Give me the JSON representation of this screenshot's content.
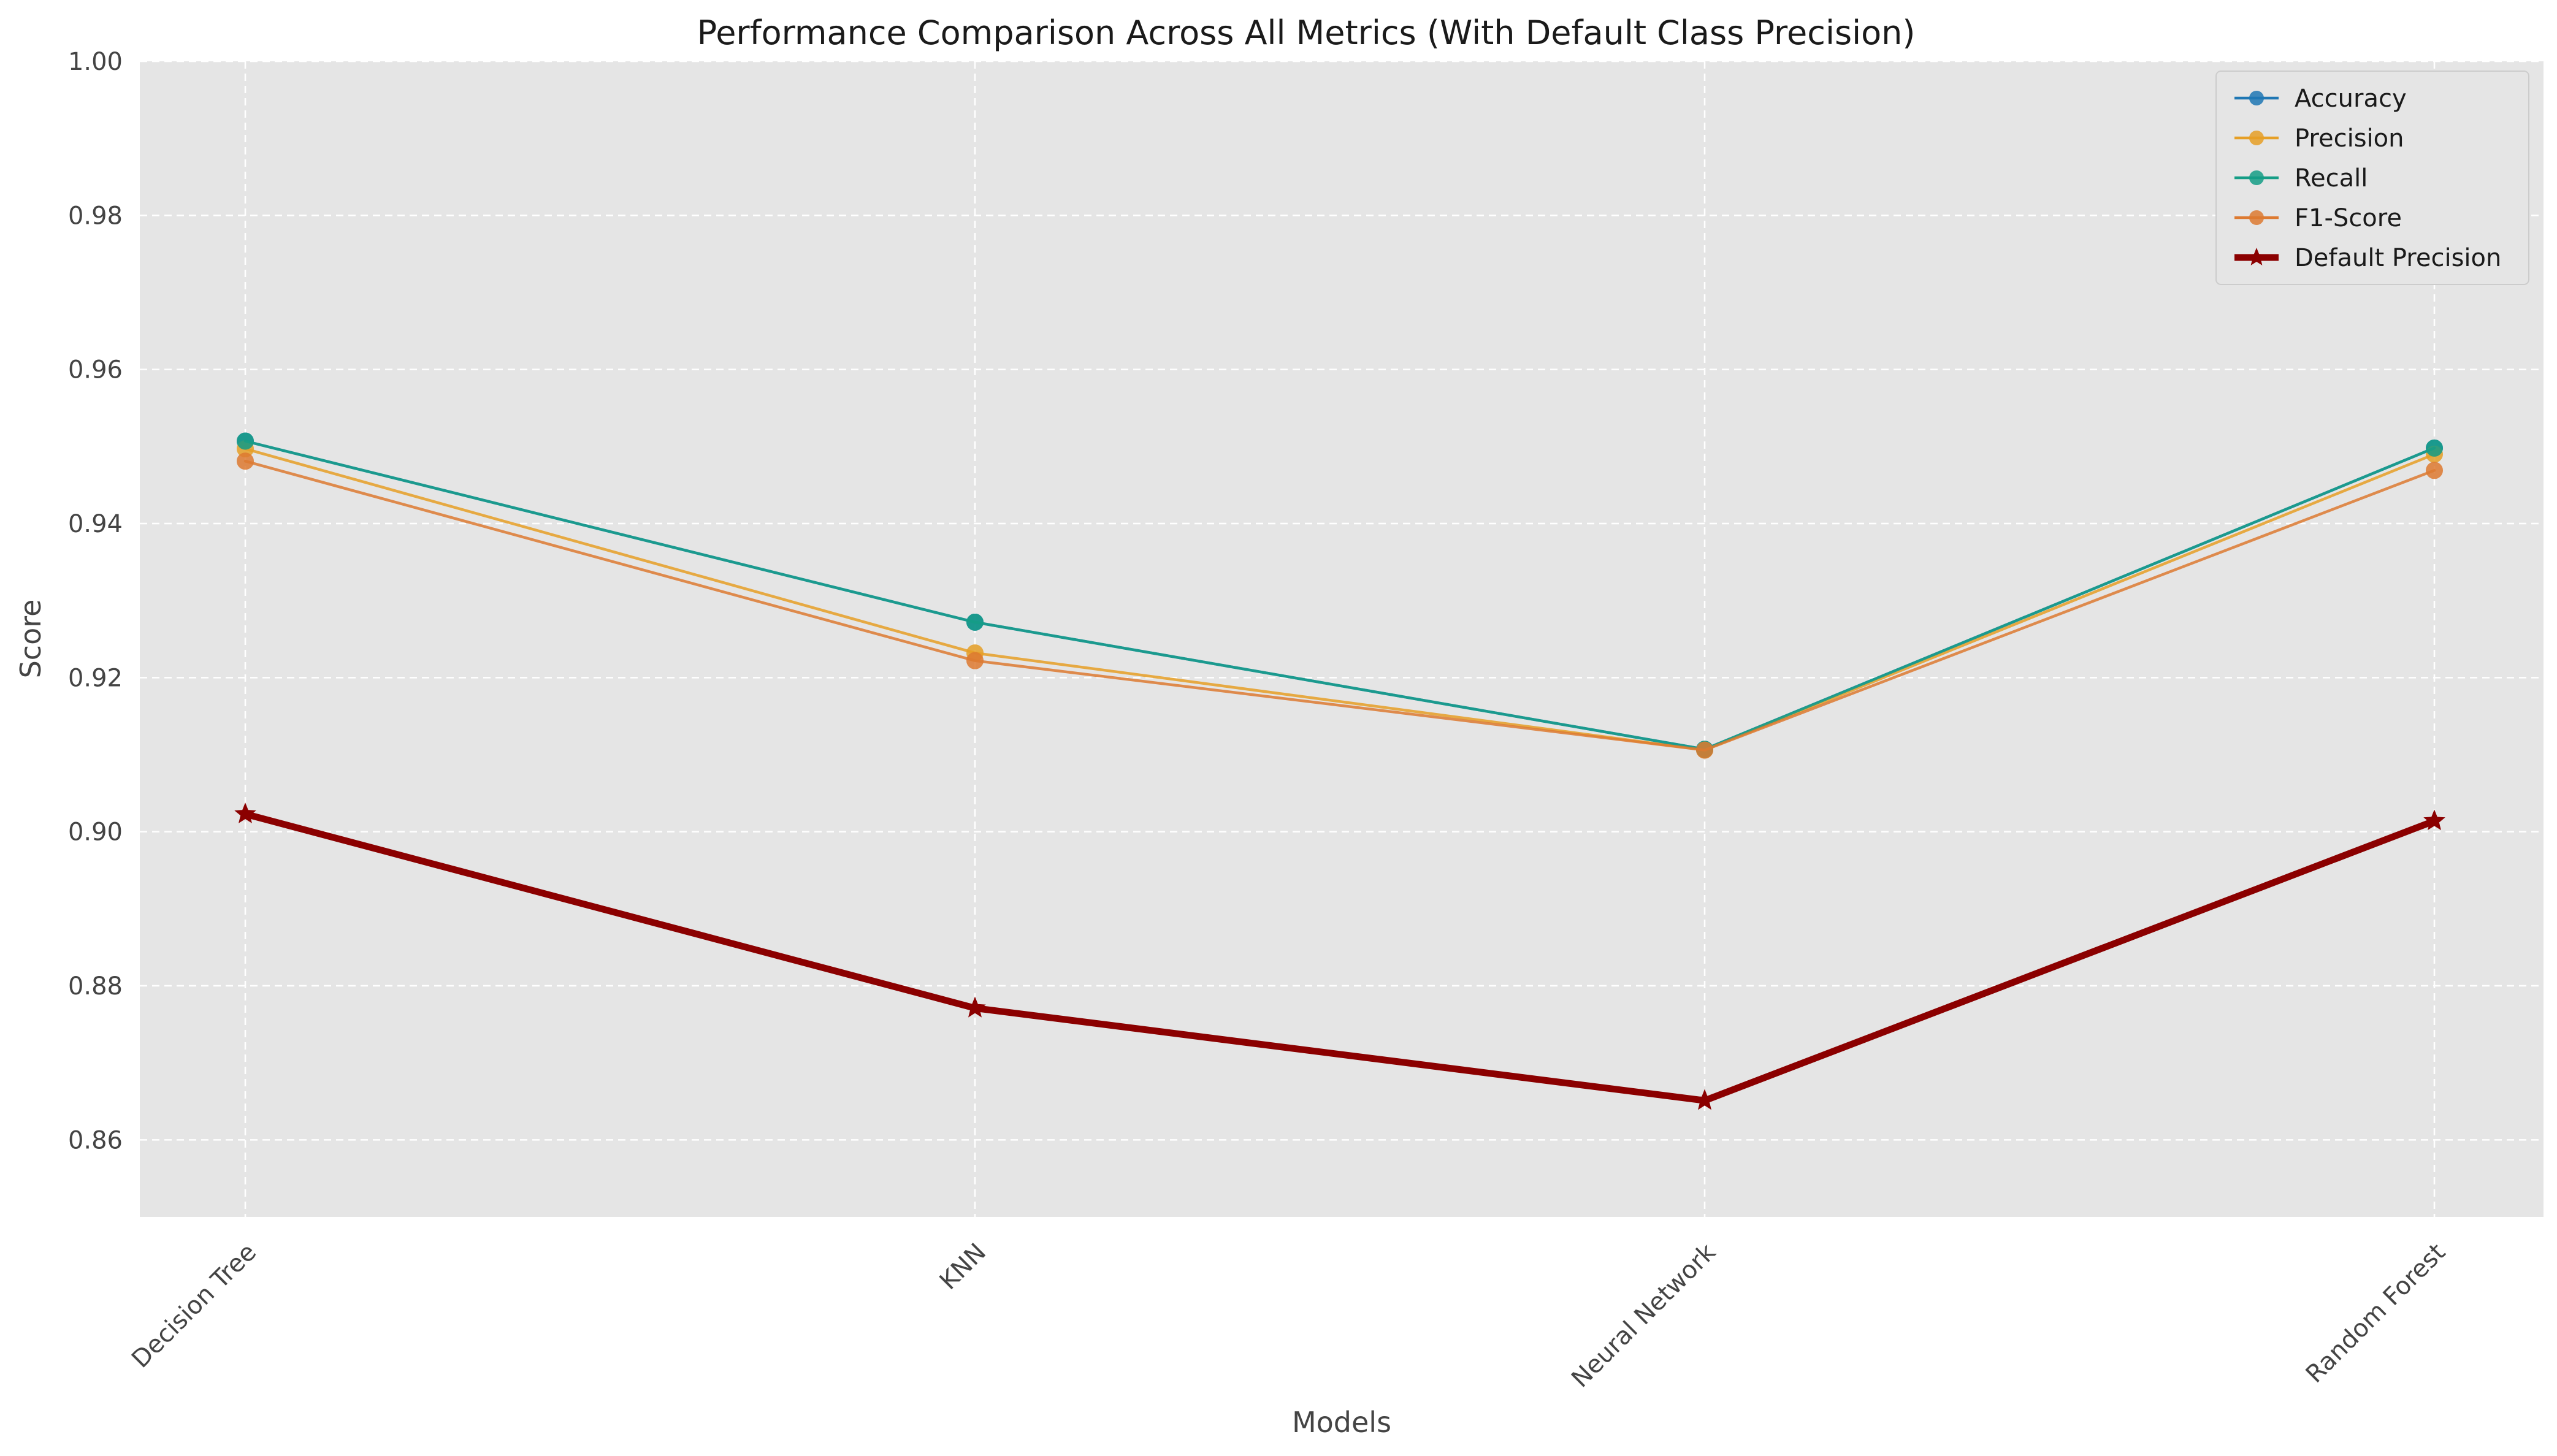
{
  "chart_data": {
    "type": "line",
    "title": "Performance Comparison Across All Metrics (With Default Class Precision)",
    "xlabel": "Models",
    "ylabel": "Score",
    "categories": [
      "Decision Tree",
      "KNN",
      "Neural Network",
      "Random Forest"
    ],
    "ylim": [
      0.85,
      1.0
    ],
    "yticks": [
      "0.86",
      "0.88",
      "0.90",
      "0.92",
      "0.94",
      "0.96",
      "0.98",
      "1.00"
    ],
    "grid": true,
    "legend_position": "top-right",
    "series": [
      {
        "name": "Accuracy",
        "values": [
          0.9507,
          0.9272,
          0.9107,
          0.9498
        ],
        "color": "#1f77b4",
        "marker": "circle",
        "line_width": "thin"
      },
      {
        "name": "Precision",
        "values": [
          0.9497,
          0.9232,
          0.9106,
          0.949
        ],
        "color": "#e69f26",
        "marker": "circle",
        "line_width": "thin"
      },
      {
        "name": "Recall",
        "values": [
          0.9507,
          0.9272,
          0.9107,
          0.9498
        ],
        "color": "#159d86",
        "marker": "circle",
        "line_width": "thin"
      },
      {
        "name": "F1-Score",
        "values": [
          0.9481,
          0.9222,
          0.9106,
          0.9469
        ],
        "color": "#dd7a31",
        "marker": "circle",
        "line_width": "thin"
      },
      {
        "name": "Default Precision",
        "values": [
          0.9023,
          0.8771,
          0.8651,
          0.9014
        ],
        "color": "#8b0000",
        "marker": "star",
        "line_width": "thick"
      }
    ]
  }
}
